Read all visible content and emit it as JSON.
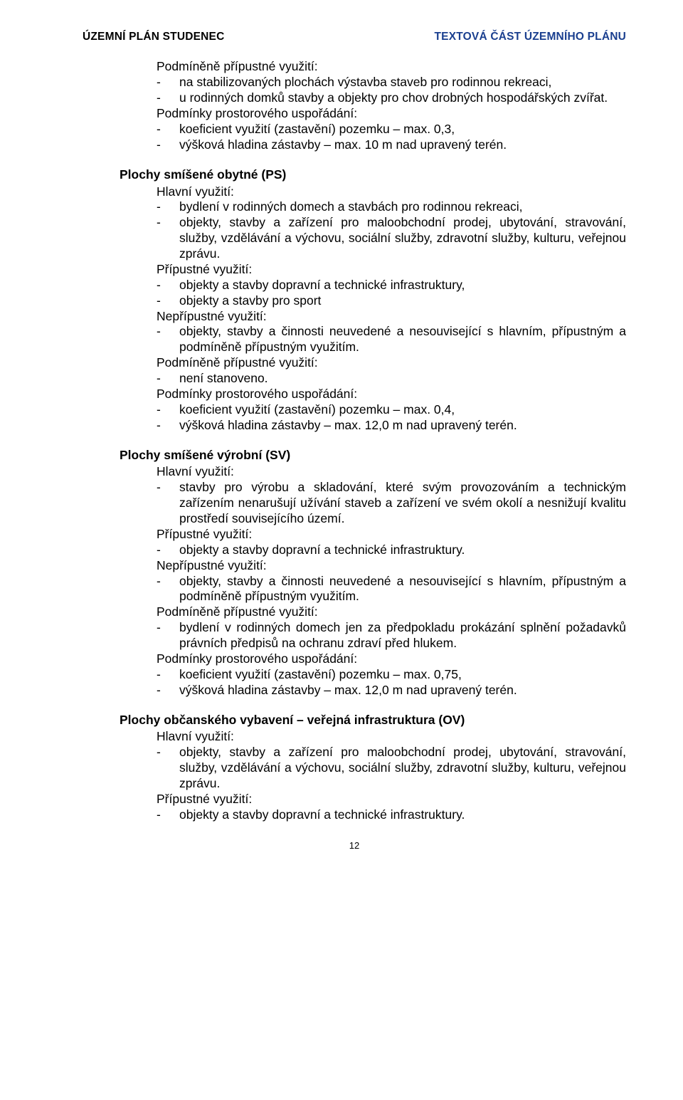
{
  "header": {
    "left": "ÚZEMNÍ PLÁN STUDENEC",
    "right": "TEXTOVÁ ČÁST ÚZEMNÍHO PLÁNU",
    "right_color": "#1a3f8f"
  },
  "top_block": {
    "l1": "Podmíněně přípustné využití:",
    "b1": "na stabilizovaných plochách výstavba staveb pro rodinnou rekreaci,",
    "b2": "u rodinných domků stavby a objekty pro chov drobných hospodářských zvířat.",
    "l2": "Podmínky prostorového uspořádání:",
    "b3": "koeficient využití (zastavění) pozemku – max. 0,3,",
    "b4": "výšková hladina zástavby – max. 10 m nad upravený terén."
  },
  "ps": {
    "title": "Plochy smíšené obytné (PS)",
    "l1": "Hlavní využití:",
    "b1": "bydlení v rodinných domech a stavbách pro rodinnou rekreaci,",
    "b2": "objekty, stavby a zařízení pro maloobchodní prodej, ubytování, stravování, služby, vzdělávání a výchovu, sociální služby, zdravotní služby, kulturu, veřejnou zprávu.",
    "l2": "Přípustné využití:",
    "b3": "objekty a stavby dopravní a technické infrastruktury,",
    "b4": "objekty a stavby pro sport",
    "l3": "Nepřípustné využití:",
    "b5": "objekty, stavby a činnosti neuvedené a nesouvisející s hlavním, přípustným a podmíněně přípustným využitím.",
    "l4": "Podmíněně přípustné využití:",
    "b6": "není stanoveno.",
    "l5": "Podmínky prostorového uspořádání:",
    "b7": "koeficient využití (zastavění) pozemku – max. 0,4,",
    "b8": "výšková hladina zástavby – max. 12,0 m nad upravený terén."
  },
  "sv": {
    "title": "Plochy smíšené výrobní (SV)",
    "l1": "Hlavní využití:",
    "b1": "stavby pro výrobu a skladování, které svým provozováním a technickým zařízením nenarušují užívání staveb a zařízení ve svém okolí a nesnižují kvalitu prostředí souvisejícího území.",
    "l2": "Přípustné využití:",
    "b2": "objekty a stavby dopravní a technické infrastruktury.",
    "l3": "Nepřípustné využití:",
    "b3": "objekty, stavby a činnosti neuvedené a nesouvisející s hlavním, přípustným a podmíněně přípustným využitím.",
    "l4": "Podmíněně přípustné využití:",
    "b4": "bydlení v rodinných domech jen za předpokladu prokázání splnění požadavků právních předpisů na ochranu zdraví před hlukem.",
    "l5": "Podmínky prostorového uspořádání:",
    "b5": "koeficient využití (zastavění) pozemku – max. 0,75,",
    "b6": "výšková hladina zástavby – max. 12,0 m nad upravený terén."
  },
  "ov": {
    "title": "Plochy občanského vybavení – veřejná infrastruktura (OV)",
    "l1": "Hlavní využití:",
    "b1": "objekty, stavby a zařízení pro maloobchodní prodej, ubytování, stravování, služby, vzdělávání a výchovu, sociální služby, zdravotní služby, kulturu, veřejnou zprávu.",
    "l2": "Přípustné využití:",
    "b2": "objekty a stavby dopravní a technické infrastruktury."
  },
  "page_number": "12"
}
